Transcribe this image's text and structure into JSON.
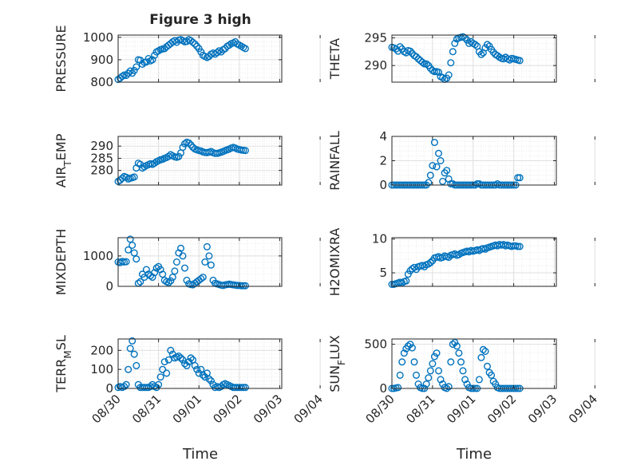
{
  "title": "Figure 3 high",
  "chart_data": [
    {
      "type": "scatter",
      "ylabel": "PRESSURE",
      "ylim": [
        800,
        1010
      ],
      "yticks": [
        800,
        900,
        1000
      ],
      "xlim": [
        0,
        4.05
      ],
      "xticks": [
        "08/30",
        "08/31",
        "09/01",
        "09/02",
        "09/03",
        "09/04"
      ],
      "grid": true,
      "x": [
        0.0,
        0.05,
        0.1,
        0.15,
        0.2,
        0.25,
        0.3,
        0.35,
        0.4,
        0.45,
        0.5,
        0.55,
        0.6,
        0.65,
        0.7,
        0.75,
        0.8,
        0.85,
        0.9,
        0.95,
        1.0,
        1.05,
        1.1,
        1.15,
        1.2,
        1.25,
        1.3,
        1.35,
        1.4,
        1.45,
        1.5,
        1.55,
        1.6,
        1.65,
        1.7,
        1.75,
        1.8,
        1.85,
        1.9,
        1.95,
        2.0,
        2.05,
        2.1,
        2.15,
        2.2,
        2.25,
        2.3,
        2.35,
        2.4,
        2.45,
        2.5,
        2.55,
        2.6,
        2.65,
        2.7,
        2.75,
        2.8,
        2.85,
        2.9,
        2.95,
        3.0,
        3.05,
        3.1,
        3.15
      ],
      "y": [
        812,
        818,
        826,
        832,
        830,
        840,
        850,
        840,
        852,
        868,
        900,
        898,
        880,
        888,
        890,
        905,
        895,
        900,
        920,
        935,
        940,
        945,
        948,
        950,
        958,
        965,
        972,
        980,
        985,
        978,
        988,
        990,
        985,
        980,
        982,
        990,
        985,
        978,
        970,
        960,
        950,
        935,
        920,
        915,
        910,
        915,
        925,
        930,
        925,
        932,
        940,
        935,
        945,
        950,
        960,
        965,
        972,
        975,
        980,
        970,
        965,
        960,
        955,
        950
      ]
    },
    {
      "type": "scatter",
      "ylabel": "THETA",
      "ylim": [
        287,
        295.5
      ],
      "yticks": [
        290,
        295
      ],
      "xlim": [
        0,
        4.05
      ],
      "xticks": [
        "08/30",
        "08/31",
        "09/01",
        "09/02",
        "09/03",
        "09/04"
      ],
      "grid": true,
      "x": [
        0.0,
        0.05,
        0.1,
        0.15,
        0.2,
        0.25,
        0.3,
        0.35,
        0.4,
        0.45,
        0.5,
        0.55,
        0.6,
        0.65,
        0.7,
        0.75,
        0.8,
        0.85,
        0.9,
        0.95,
        1.0,
        1.05,
        1.1,
        1.15,
        1.2,
        1.25,
        1.3,
        1.35,
        1.4,
        1.45,
        1.5,
        1.55,
        1.6,
        1.65,
        1.7,
        1.75,
        1.8,
        1.85,
        1.9,
        1.95,
        2.0,
        2.05,
        2.1,
        2.15,
        2.2,
        2.25,
        2.3,
        2.35,
        2.4,
        2.45,
        2.5,
        2.55,
        2.6,
        2.65,
        2.7,
        2.75,
        2.8,
        2.85,
        2.9,
        2.95,
        3.0,
        3.05,
        3.1,
        3.15
      ],
      "y": [
        293.3,
        293.2,
        293.0,
        292.6,
        293.4,
        293.0,
        292.5,
        292.3,
        292.7,
        292.6,
        292.2,
        291.8,
        291.6,
        291.2,
        290.9,
        290.6,
        290.3,
        290.3,
        290.0,
        289.5,
        289.1,
        288.9,
        288.9,
        288.8,
        288.0,
        287.8,
        287.5,
        287.7,
        288.3,
        290.5,
        292.5,
        294.0,
        294.8,
        295.0,
        295.1,
        295.2,
        295.0,
        294.6,
        294.0,
        294.3,
        294.0,
        293.8,
        293.5,
        292.5,
        292.0,
        292.3,
        293.2,
        293.8,
        293.5,
        292.9,
        292.4,
        292.0,
        291.8,
        291.5,
        291.3,
        291.2,
        291.5,
        291.2,
        291.0,
        291.3,
        291.2,
        291.1,
        291.0,
        290.9
      ]
    },
    {
      "type": "scatter",
      "ylabel": "AIR_TEMP",
      "ylim": [
        274,
        294
      ],
      "yticks": [
        280,
        285,
        290
      ],
      "xlim": [
        0,
        4.05
      ],
      "xticks": [
        "08/30",
        "08/31",
        "09/01",
        "09/02",
        "09/03",
        "09/04"
      ],
      "grid": true,
      "x": [
        0.0,
        0.05,
        0.1,
        0.15,
        0.2,
        0.25,
        0.3,
        0.35,
        0.4,
        0.45,
        0.5,
        0.55,
        0.6,
        0.65,
        0.7,
        0.75,
        0.8,
        0.85,
        0.9,
        0.95,
        1.0,
        1.05,
        1.1,
        1.15,
        1.2,
        1.25,
        1.3,
        1.35,
        1.4,
        1.45,
        1.5,
        1.55,
        1.6,
        1.65,
        1.7,
        1.75,
        1.8,
        1.85,
        1.9,
        1.95,
        2.0,
        2.05,
        2.1,
        2.15,
        2.2,
        2.25,
        2.3,
        2.35,
        2.4,
        2.45,
        2.5,
        2.55,
        2.6,
        2.65,
        2.7,
        2.75,
        2.8,
        2.85,
        2.9,
        2.95,
        3.0,
        3.05,
        3.1,
        3.15
      ],
      "y": [
        275.5,
        276.0,
        276.8,
        277.5,
        277.2,
        276.5,
        276.8,
        277.0,
        277.3,
        281.0,
        283.0,
        282.5,
        281.0,
        281.5,
        282.0,
        282.4,
        282.8,
        282.5,
        283.0,
        283.6,
        284.0,
        284.4,
        284.6,
        285.0,
        285.3,
        285.8,
        286.5,
        286.0,
        285.6,
        285.4,
        285.7,
        287.2,
        289.5,
        291.0,
        291.6,
        291.3,
        290.5,
        289.5,
        288.8,
        288.5,
        288.2,
        288.0,
        287.6,
        287.4,
        287.3,
        287.5,
        287.8,
        287.3,
        287.0,
        287.0,
        287.2,
        287.5,
        287.8,
        288.2,
        288.5,
        288.8,
        289.2,
        289.5,
        289.2,
        288.8,
        288.6,
        288.4,
        288.3,
        288.2
      ]
    },
    {
      "type": "scatter",
      "ylabel": "RAINFALL",
      "ylim": [
        0,
        4
      ],
      "yticks": [
        0,
        2,
        4
      ],
      "xlim": [
        0,
        4.05
      ],
      "xticks": [
        "08/30",
        "08/31",
        "09/01",
        "09/02",
        "09/03",
        "09/04"
      ],
      "grid": true,
      "x": [
        0.0,
        0.05,
        0.1,
        0.15,
        0.2,
        0.25,
        0.3,
        0.35,
        0.4,
        0.45,
        0.5,
        0.55,
        0.6,
        0.65,
        0.7,
        0.75,
        0.8,
        0.85,
        0.9,
        0.95,
        1.0,
        1.05,
        1.1,
        1.15,
        1.2,
        1.25,
        1.3,
        1.35,
        1.4,
        1.45,
        1.5,
        1.55,
        1.6,
        1.65,
        1.7,
        1.75,
        1.8,
        1.85,
        1.9,
        1.95,
        2.0,
        2.05,
        2.1,
        2.15,
        2.2,
        2.25,
        2.3,
        2.35,
        2.4,
        2.45,
        2.5,
        2.55,
        2.6,
        2.65,
        2.7,
        2.75,
        2.8,
        2.85,
        2.9,
        2.95,
        3.0,
        3.05,
        3.1,
        3.15
      ],
      "y": [
        0,
        0,
        0,
        0,
        0,
        0,
        0,
        0,
        0,
        0,
        0,
        0,
        0,
        0,
        0,
        0,
        0,
        0,
        0.2,
        0.8,
        1.6,
        3.5,
        1.5,
        2.6,
        2.0,
        0.3,
        1.0,
        1.2,
        0.5,
        0.1,
        0.1,
        0,
        0,
        0,
        0,
        0,
        0,
        0,
        0,
        0,
        0,
        0,
        0.1,
        0.1,
        0,
        0,
        0,
        0,
        0,
        0,
        0,
        0,
        0.1,
        0,
        0,
        0,
        0,
        0,
        0,
        0,
        0,
        0,
        0.6,
        0.6
      ]
    },
    {
      "type": "scatter",
      "ylabel": "MIXDEPTH",
      "ylim": [
        0,
        1600
      ],
      "yticks": [
        0,
        1000
      ],
      "xlim": [
        0,
        4.05
      ],
      "xticks": [
        "08/30",
        "08/31",
        "09/01",
        "09/02",
        "09/03",
        "09/04"
      ],
      "grid": true,
      "x": [
        0.0,
        0.05,
        0.1,
        0.15,
        0.2,
        0.25,
        0.3,
        0.35,
        0.4,
        0.45,
        0.5,
        0.55,
        0.6,
        0.65,
        0.7,
        0.75,
        0.8,
        0.85,
        0.9,
        0.95,
        1.0,
        1.05,
        1.1,
        1.15,
        1.2,
        1.25,
        1.3,
        1.35,
        1.4,
        1.45,
        1.5,
        1.55,
        1.6,
        1.65,
        1.7,
        1.75,
        1.8,
        1.85,
        1.9,
        1.95,
        2.0,
        2.05,
        2.1,
        2.15,
        2.2,
        2.25,
        2.3,
        2.35,
        2.4,
        2.45,
        2.5,
        2.55,
        2.6,
        2.65,
        2.7,
        2.75,
        2.8,
        2.85,
        2.9,
        2.95,
        3.0,
        3.05,
        3.1,
        3.15
      ],
      "y": [
        800,
        780,
        820,
        800,
        810,
        1200,
        1550,
        1350,
        1100,
        900,
        100,
        150,
        400,
        300,
        550,
        400,
        350,
        300,
        450,
        600,
        650,
        550,
        400,
        200,
        150,
        120,
        180,
        300,
        500,
        800,
        1100,
        1250,
        1000,
        600,
        200,
        80,
        60,
        50,
        100,
        150,
        200,
        250,
        300,
        800,
        1300,
        1000,
        700,
        200,
        100,
        80,
        60,
        40,
        30,
        50,
        60,
        70,
        60,
        50,
        40,
        30,
        30,
        20,
        20,
        20
      ]
    },
    {
      "type": "scatter",
      "ylabel": "H2OMIXRA",
      "ylim": [
        3,
        10.2
      ],
      "yticks": [
        5,
        10
      ],
      "xlim": [
        0,
        4.05
      ],
      "xticks": [
        "08/30",
        "08/31",
        "09/01",
        "09/02",
        "09/03",
        "09/04"
      ],
      "grid": true,
      "x": [
        0.0,
        0.05,
        0.1,
        0.15,
        0.2,
        0.25,
        0.3,
        0.35,
        0.4,
        0.45,
        0.5,
        0.55,
        0.6,
        0.65,
        0.7,
        0.75,
        0.8,
        0.85,
        0.9,
        0.95,
        1.0,
        1.05,
        1.1,
        1.15,
        1.2,
        1.25,
        1.3,
        1.35,
        1.4,
        1.45,
        1.5,
        1.55,
        1.6,
        1.65,
        1.7,
        1.75,
        1.8,
        1.85,
        1.9,
        1.95,
        2.0,
        2.05,
        2.1,
        2.15,
        2.2,
        2.25,
        2.3,
        2.35,
        2.4,
        2.45,
        2.5,
        2.55,
        2.6,
        2.65,
        2.7,
        2.75,
        2.8,
        2.85,
        2.9,
        2.95,
        3.0,
        3.05,
        3.1,
        3.15
      ],
      "y": [
        3.3,
        3.3,
        3.4,
        3.5,
        3.6,
        3.5,
        3.7,
        3.8,
        4.8,
        5.3,
        5.6,
        5.8,
        5.5,
        5.9,
        6.0,
        6.1,
        5.9,
        6.2,
        6.3,
        6.5,
        6.8,
        7.2,
        7.3,
        7.4,
        7.2,
        7.3,
        7.5,
        7.4,
        7.3,
        7.6,
        7.7,
        7.8,
        7.6,
        7.7,
        7.9,
        8.0,
        8.1,
        8.2,
        8.1,
        8.3,
        8.2,
        8.3,
        8.4,
        8.3,
        8.5,
        8.6,
        8.5,
        8.7,
        8.8,
        8.9,
        9.0,
        9.1,
        9.0,
        9.2,
        9.1,
        9.2,
        9.0,
        9.1,
        9.0,
        8.9,
        9.0,
        9.0,
        8.9,
        8.9
      ]
    },
    {
      "type": "scatter",
      "ylabel": "TERR_MSL",
      "ylim": [
        0,
        260
      ],
      "yticks": [
        0,
        100,
        200
      ],
      "xlim": [
        0,
        4.05
      ],
      "xticks": [
        "08/30",
        "08/31",
        "09/01",
        "09/02",
        "09/03",
        "09/04"
      ],
      "grid": true,
      "x": [
        0.0,
        0.05,
        0.1,
        0.15,
        0.2,
        0.25,
        0.3,
        0.35,
        0.4,
        0.45,
        0.5,
        0.55,
        0.6,
        0.65,
        0.7,
        0.75,
        0.8,
        0.85,
        0.9,
        0.95,
        1.0,
        1.05,
        1.1,
        1.15,
        1.2,
        1.25,
        1.3,
        1.35,
        1.4,
        1.45,
        1.5,
        1.55,
        1.6,
        1.65,
        1.7,
        1.75,
        1.8,
        1.85,
        1.9,
        1.95,
        2.0,
        2.05,
        2.1,
        2.15,
        2.2,
        2.25,
        2.3,
        2.35,
        2.4,
        2.45,
        2.5,
        2.55,
        2.6,
        2.65,
        2.7,
        2.75,
        2.8,
        2.85,
        2.9,
        2.95,
        3.0,
        3.05,
        3.1,
        3.15
      ],
      "y": [
        5,
        10,
        5,
        10,
        20,
        100,
        210,
        250,
        180,
        120,
        20,
        5,
        5,
        5,
        5,
        5,
        10,
        20,
        10,
        5,
        20,
        60,
        100,
        140,
        80,
        150,
        200,
        180,
        160,
        165,
        170,
        160,
        150,
        130,
        120,
        140,
        160,
        150,
        120,
        100,
        80,
        100,
        70,
        60,
        80,
        50,
        40,
        20,
        5,
        10,
        5,
        10,
        20,
        25,
        20,
        15,
        10,
        5,
        5,
        5,
        5,
        5,
        5,
        5
      ]
    },
    {
      "type": "scatter",
      "ylabel": "SUN_FLUX",
      "ylim": [
        0,
        560
      ],
      "yticks": [
        0,
        500
      ],
      "xlim": [
        0,
        4.05
      ],
      "xticks": [
        "08/30",
        "08/31",
        "09/01",
        "09/02",
        "09/03",
        "09/04"
      ],
      "grid": true,
      "x": [
        0.0,
        0.05,
        0.1,
        0.15,
        0.2,
        0.25,
        0.3,
        0.35,
        0.4,
        0.45,
        0.5,
        0.55,
        0.6,
        0.65,
        0.7,
        0.75,
        0.8,
        0.85,
        0.9,
        0.95,
        1.0,
        1.05,
        1.1,
        1.15,
        1.2,
        1.25,
        1.3,
        1.35,
        1.4,
        1.45,
        1.5,
        1.55,
        1.6,
        1.65,
        1.7,
        1.75,
        1.8,
        1.85,
        1.9,
        1.95,
        2.0,
        2.05,
        2.1,
        2.15,
        2.2,
        2.25,
        2.3,
        2.35,
        2.4,
        2.45,
        2.5,
        2.55,
        2.6,
        2.65,
        2.7,
        2.75,
        2.8,
        2.85,
        2.9,
        2.95,
        3.0,
        3.05,
        3.1,
        3.15
      ],
      "y": [
        0,
        0,
        5,
        10,
        150,
        300,
        400,
        450,
        480,
        500,
        460,
        300,
        150,
        50,
        10,
        0,
        0,
        50,
        120,
        200,
        280,
        360,
        400,
        200,
        100,
        50,
        10,
        0,
        20,
        300,
        500,
        520,
        480,
        400,
        300,
        200,
        100,
        50,
        10,
        0,
        0,
        0,
        0,
        100,
        350,
        440,
        420,
        250,
        180,
        150,
        80,
        50,
        10,
        0,
        0,
        0,
        0,
        0,
        0,
        0,
        0,
        0,
        0,
        0
      ]
    }
  ],
  "x_axis_label_left": "Time",
  "x_axis_label_right": "Time",
  "colors": {
    "marker": "#0072BD",
    "axis": "#262626",
    "grid": "#dfdfdf"
  }
}
